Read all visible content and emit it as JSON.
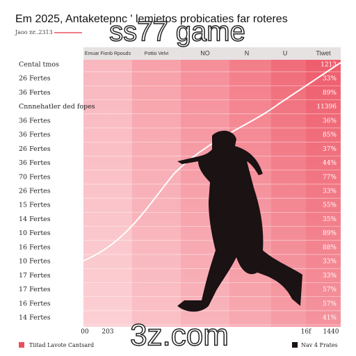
{
  "header": {
    "title": "Em 2025, Antaketepnc ' lemietos probicaties far roteres",
    "subtitle": "Jaoo nr..2313"
  },
  "overlay_top": "ss77 game",
  "overlay_bottom": "3z.com",
  "columns": [
    "Emuar Fionb Rpouds",
    "Pottio Velvi",
    "NO",
    "N",
    "U",
    "Tiwet"
  ],
  "rows": [
    {
      "label": "Cental tmos",
      "value": "1213"
    },
    {
      "label": "26 Fertes",
      "value": "33%"
    },
    {
      "label": "36 Fertes",
      "value": "89%"
    },
    {
      "label": "Cnnnehatler ded fopes",
      "value": "11396"
    },
    {
      "label": "36 Fertes",
      "value": "36%"
    },
    {
      "label": "36 Fertes",
      "value": "85%"
    },
    {
      "label": "26 Fertes",
      "value": "37%"
    },
    {
      "label": "36 Fertes",
      "value": "44%"
    },
    {
      "label": "70 Fertes",
      "value": "77%"
    },
    {
      "label": "26 Fertes",
      "value": "33%"
    },
    {
      "label": "15 Fertes",
      "value": "55%"
    },
    {
      "label": "14 Fertes",
      "value": "35%"
    },
    {
      "label": "10 Fertes",
      "value": "89%"
    },
    {
      "label": "16 Fertes",
      "value": "88%"
    },
    {
      "label": "10 Fertes",
      "value": "33%"
    },
    {
      "label": "17 Fertes",
      "value": "33%"
    },
    {
      "label": "17 Fertes",
      "value": "57%"
    },
    {
      "label": "16 Fertes",
      "value": "57%"
    },
    {
      "label": "14 Fertes",
      "value": "41%"
    }
  ],
  "footer": {
    "axis_labels": [
      "00",
      "203",
      "16f",
      "1440"
    ],
    "legend": [
      "Tiitad Lavote Cantsard",
      "Nav 4 Frates"
    ]
  }
}
